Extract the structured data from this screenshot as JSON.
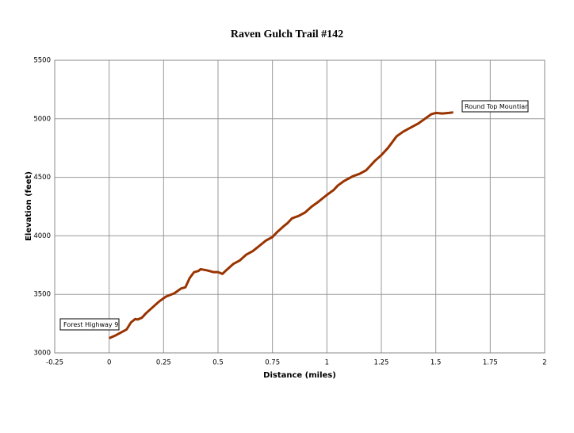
{
  "chart_data": {
    "type": "line",
    "title": "Raven Gulch Trail #142",
    "x_label": "Distance (miles)",
    "y_label": "Elevation (feet)",
    "xlim": [
      -0.25,
      2
    ],
    "xticks": [
      -0.25,
      0,
      0.25,
      0.5,
      0.75,
      1,
      1.25,
      1.5,
      1.75,
      2
    ],
    "ylim": [
      3000,
      5500
    ],
    "yticks": [
      3000,
      3500,
      4000,
      4500,
      5000,
      5500
    ],
    "grid": true,
    "annotations": [
      "Forest Highway 9",
      "Round Top Mountian"
    ],
    "series": [
      {
        "name": "Elevation",
        "color": "#993300",
        "x": [
          0,
          0.03,
          0.06,
          0.08,
          0.1,
          0.12,
          0.13,
          0.15,
          0.17,
          0.2,
          0.23,
          0.26,
          0.3,
          0.33,
          0.35,
          0.37,
          0.39,
          0.41,
          0.42,
          0.45,
          0.48,
          0.5,
          0.52,
          0.54,
          0.57,
          0.6,
          0.63,
          0.66,
          0.7,
          0.72,
          0.75,
          0.77,
          0.8,
          0.82,
          0.84,
          0.87,
          0.9,
          0.93,
          0.96,
          1.0,
          1.03,
          1.05,
          1.08,
          1.12,
          1.15,
          1.18,
          1.2,
          1.22,
          1.25,
          1.28,
          1.3,
          1.32,
          1.35,
          1.38,
          1.42,
          1.45,
          1.48,
          1.5,
          1.53,
          1.56,
          1.58
        ],
        "values": [
          3125,
          3150,
          3180,
          3200,
          3260,
          3290,
          3285,
          3300,
          3340,
          3390,
          3440,
          3480,
          3510,
          3550,
          3560,
          3640,
          3690,
          3700,
          3715,
          3705,
          3690,
          3690,
          3675,
          3710,
          3760,
          3790,
          3840,
          3870,
          3930,
          3960,
          3990,
          4030,
          4080,
          4110,
          4150,
          4170,
          4200,
          4250,
          4290,
          4350,
          4390,
          4430,
          4470,
          4510,
          4530,
          4560,
          4600,
          4640,
          4690,
          4750,
          4800,
          4850,
          4890,
          4920,
          4960,
          5000,
          5040,
          5050,
          5045,
          5050,
          5055
        ]
      }
    ]
  }
}
